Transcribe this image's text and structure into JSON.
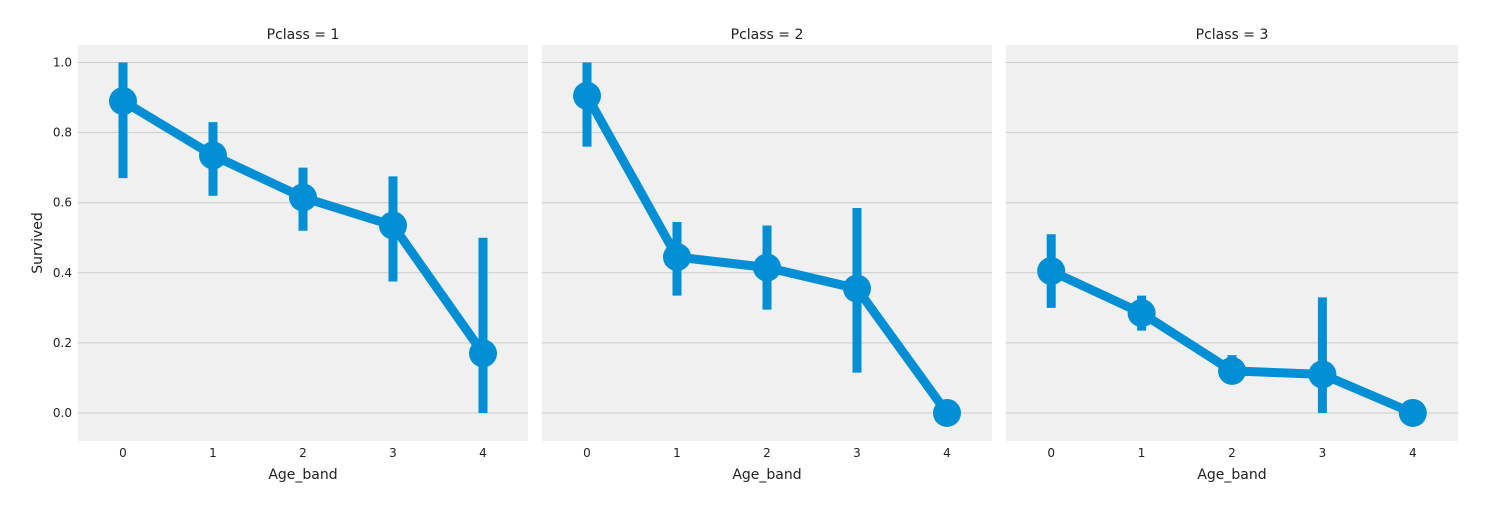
{
  "chart_data": {
    "type": "line",
    "subtype": "pointplot with confidence intervals, faceted",
    "ylabel": "Survived",
    "xlabel": "Age_band",
    "categories": [
      "0",
      "1",
      "2",
      "3",
      "4"
    ],
    "ylim": [
      -0.08,
      1.05
    ],
    "yticks": [
      "0.0",
      "0.2",
      "0.4",
      "0.6",
      "0.8",
      "1.0"
    ],
    "grid": true,
    "color": "#008fd5",
    "panel_background": "#f0f0f0",
    "facets": [
      {
        "title": "Pclass = 1",
        "values": [
          0.89,
          0.735,
          0.615,
          0.535,
          0.17
        ],
        "ci_low": [
          0.67,
          0.62,
          0.52,
          0.375,
          0.0
        ],
        "ci_high": [
          1.0,
          0.83,
          0.7,
          0.675,
          0.5
        ]
      },
      {
        "title": "Pclass = 2",
        "values": [
          0.905,
          0.445,
          0.415,
          0.355,
          0.0
        ],
        "ci_low": [
          0.76,
          0.335,
          0.295,
          0.115,
          0.0
        ],
        "ci_high": [
          1.0,
          0.545,
          0.535,
          0.585,
          0.0
        ]
      },
      {
        "title": "Pclass = 3",
        "values": [
          0.405,
          0.285,
          0.12,
          0.11,
          0.0
        ],
        "ci_low": [
          0.3,
          0.235,
          0.1,
          0.0,
          0.0
        ],
        "ci_high": [
          0.51,
          0.335,
          0.165,
          0.33,
          0.0
        ]
      }
    ]
  }
}
